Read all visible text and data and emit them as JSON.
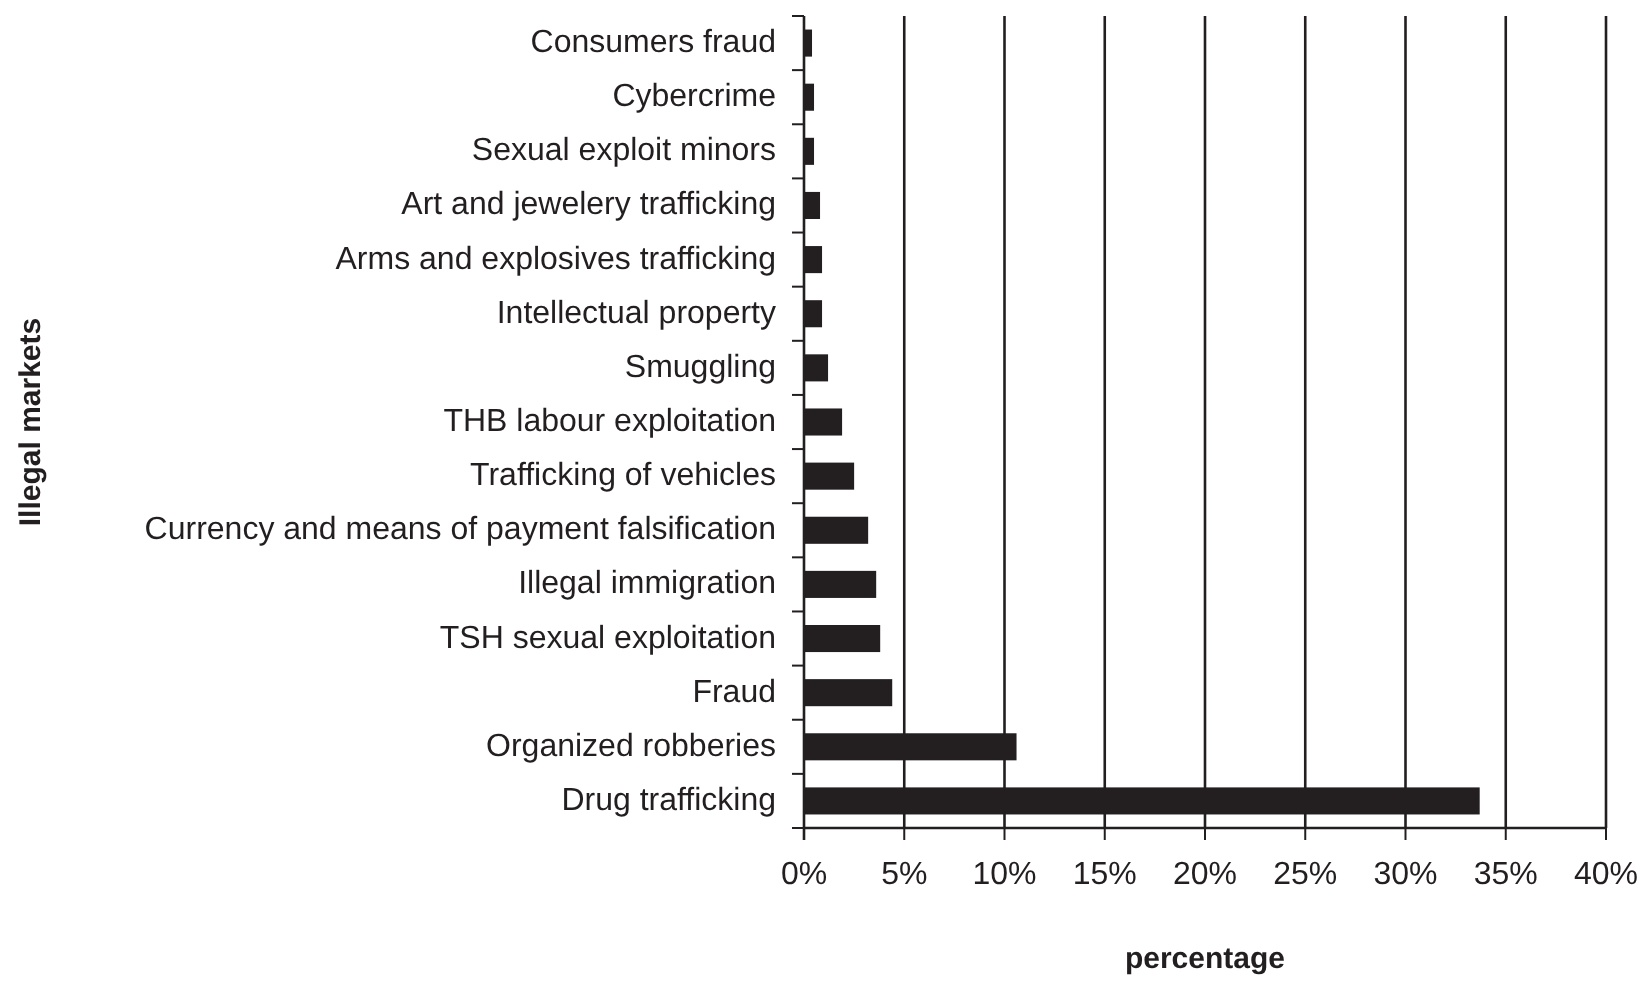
{
  "chart_data": {
    "type": "bar",
    "orientation": "horizontal",
    "xlabel": "percentage",
    "ylabel": "Illegal markets",
    "categories": [
      "Consumers fraud",
      "Cybercrime",
      "Sexual exploit minors",
      "Art and jewelery trafficking",
      "Arms and explosives trafficking",
      "Intellectual property",
      "Smuggling",
      "THB labour exploitation",
      "Trafficking of vehicles",
      "Currency and means of payment falsification",
      "Illegal immigration",
      "TSH sexual exploitation",
      "Fraud",
      "Organized robberies",
      "Drug trafficking"
    ],
    "values": [
      0.4,
      0.5,
      0.5,
      0.8,
      0.9,
      0.9,
      1.2,
      1.9,
      2.5,
      3.2,
      3.6,
      3.8,
      4.4,
      10.6,
      33.7
    ],
    "color": "#231f20",
    "xlim": [
      0,
      40
    ],
    "xticks": [
      {
        "value": 0,
        "label": "0%"
      },
      {
        "value": 5,
        "label": "5%"
      },
      {
        "value": 10,
        "label": "10%"
      },
      {
        "value": 15,
        "label": "15%"
      },
      {
        "value": 20,
        "label": "20%"
      },
      {
        "value": 25,
        "label": "25%"
      },
      {
        "value": 30,
        "label": "30%"
      },
      {
        "value": 35,
        "label": "35%"
      },
      {
        "value": 40,
        "label": "40%"
      }
    ],
    "grid": "x"
  }
}
